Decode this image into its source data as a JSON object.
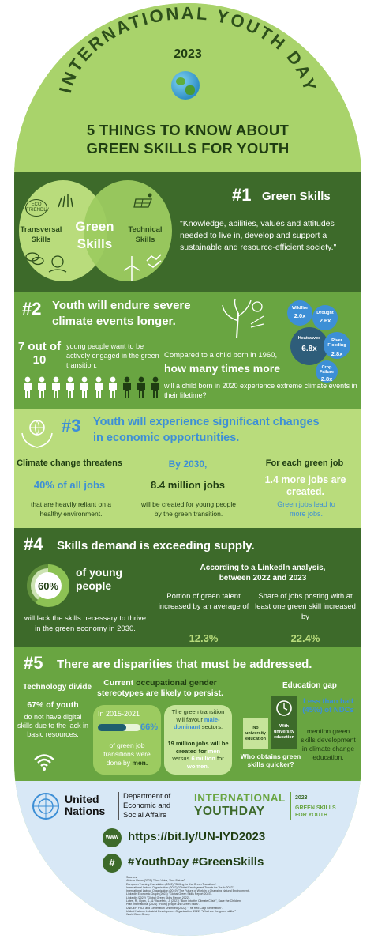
{
  "header": {
    "arc_title": "INTERNATIONAL YOUTH DAY",
    "year": "2023",
    "main_title_line1": "5 THINGS TO KNOW ABOUT",
    "main_title_line2": "GREEN SKILLS FOR YOUTH"
  },
  "s1": {
    "number": "#1",
    "title": "Green Skills",
    "venn_left": "Transversal\nSkills",
    "venn_center": "Green\nSkills",
    "venn_right": "Technical\nSkills",
    "eco_badge": "ECO\nFRIENDLY",
    "quote": "\"Knowledge, abilities, values and attitudes needed to live in, develop and support a sustainable and resource-efficient society.\""
  },
  "s2": {
    "number": "#2",
    "title_line1": "Youth will endure severe",
    "title_line2": "climate events longer.",
    "stat_big": "7 out of 10",
    "stat_text": "young people want to be actively engaged in the green transition.",
    "compare_intro": "Compared to a child born in 1960,",
    "compare_question": "how many times more",
    "compare_tail": "will a child born in 2020 experience extreme climate events in their lifetime?",
    "bubbles": [
      {
        "label": "Wildfire",
        "value": "2.0x"
      },
      {
        "label": "Drought",
        "value": "2.6x"
      },
      {
        "label": "Heatwaves",
        "value": "6.8x"
      },
      {
        "label": "River Flooding",
        "value": "2.8x"
      },
      {
        "label": "Crop Failure",
        "value": "2.8x"
      }
    ],
    "people_total": 10,
    "people_highlighted": 7
  },
  "s3": {
    "number": "#3",
    "title_line1": "Youth will experience significant changes",
    "title_line2": "in economic opportunities.",
    "col1_head": "Climate change threatens",
    "col1_stat": "40% of all jobs",
    "col1_text": "that are heavily reliant on a healthy environment.",
    "col2_head": "By 2030,",
    "col2_stat": "8.4 million jobs",
    "col2_text": "will be created for young people by the green transition.",
    "col3_head": "For each green job",
    "col3_stat": "1.4 more jobs are created.",
    "col3_text": "Green jobs lead to more jobs."
  },
  "s4": {
    "number": "#4",
    "title": "Skills demand is exceeding supply.",
    "donut_value": "60%",
    "donut_fraction": 0.6,
    "donut_side": "of young people",
    "donut_text": "will lack the skills necessary to thrive in the green economy in 2030.",
    "linkedin_head": "According to a LinkedIn analysis, between 2022 and 2023",
    "col1_text": "Portion of green talent increased by an average of",
    "col1_value": "12.3%",
    "col2_text": "Share of jobs posting with at least one green skill increased by",
    "col2_value": "22.4%"
  },
  "s5": {
    "number": "#5",
    "title": "There are disparities that must be addressed.",
    "tech_head": "Technology divide",
    "tech_stat": "67% of youth",
    "tech_text": "do not have digital skills due to the lack in basic resources.",
    "gender_head1": "Current",
    "gender_head2": "occupational gender",
    "gender_head3": "stereotypes are likely to persist.",
    "gender_period": "In 2015-2021",
    "gender_pct": "66%",
    "gender_fraction": 0.66,
    "gender_text1": "of green job transitions were done by",
    "gender_men": "men.",
    "gender_right1": "The green transition will favour",
    "gender_right1_hl": "male-dominant",
    "gender_right1_tail": "sectors.",
    "gender_right2": "19 million jobs will be created for",
    "gender_right2_men": "men",
    "gender_right2_vs": "versus",
    "gender_right2_num": "6 million",
    "gender_right2_tail": "for",
    "gender_right2_women": "women.",
    "edu_head": "Education gap",
    "edu_no": "No university education",
    "edu_with": "With university education",
    "edu_question": "Who obtains green skills quicker?",
    "ndc_hl": "Less than half (45%) of NDCs",
    "ndc_text": "mention green skills development in climate change education."
  },
  "footer": {
    "un_name": "United Nations",
    "dept": "Department of Economic and Social Affairs",
    "iyd_line1": "INTERNATIONAL",
    "iyd_line2": "YOUTHDAY",
    "iyd_year": "2023",
    "iyd_tag": "GREEN SKILLS FOR YOUTH",
    "website_icon": "www",
    "url": "https://bit.ly/UN-IYD2023",
    "hashtag_icon": "#",
    "hashtags": "#YouthDay #GreenSkills",
    "sources_label": "Sources:",
    "sources": [
      "African Union (2021) \"Your Voice, Your Future\".",
      "European Training Foundation (2022) \"Skilling for the Green Transition\".",
      "International Labour Organization (2022) \"Global Employment Trends for Youth 2022\".",
      "International Labour Organization (2019) \"The Future of Work in a Changing Natural Environment\".",
      "LinkedIn Economic Graph (2023) \"Global Green Skills Report 2023\".",
      "LinkedIn (2022) \"Global Green Skills Report 2022\".",
      "Lutes, R., Ryan, S., & Wakefield, J. (2021) \"Born into the Climate Crisis\", Save the Children.",
      "Plan International (2021) \"Young people and Green Skills\".",
      "UNICEF, FAO, and Generation Unlimited (2022) \"The Red Carp Generation\".",
      "United Nations Industrial Development Organization (2022) \"What are the green skills?\"",
      "World Bank Group"
    ]
  },
  "colors": {
    "pill_green": "#a9d36b",
    "dark_green": "#3d6a2a",
    "mid_green": "#69a541",
    "light_green": "#b9dc7c",
    "accent_blue": "#3d8fd6",
    "footer_blue": "#d8e8f6"
  }
}
